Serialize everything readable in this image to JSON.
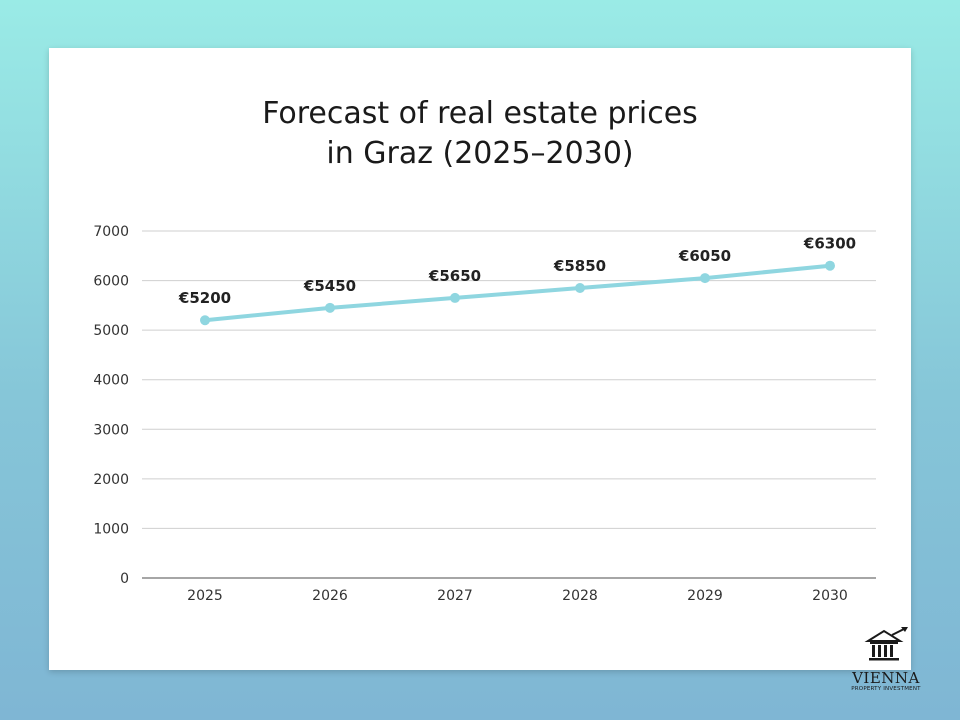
{
  "chart_data": {
    "type": "line",
    "title_lines": [
      "Forecast of real estate prices",
      "in Graz (2025–2030)"
    ],
    "categories": [
      "2025",
      "2026",
      "2027",
      "2028",
      "2029",
      "2030"
    ],
    "values": [
      5200,
      5450,
      5650,
      5850,
      6050,
      6300
    ],
    "data_labels": [
      "€5200",
      "€5450",
      "€5650",
      "€5850",
      "€6050",
      "€6300"
    ],
    "y_ticks": [
      0,
      1000,
      2000,
      3000,
      4000,
      5000,
      6000,
      7000
    ],
    "ylim": [
      0,
      7000
    ],
    "grid": true,
    "line_color": "#8fd6e0",
    "grid_color": "#cfcfcf"
  },
  "logo": {
    "name": "VIENNA",
    "subtitle": "PROPERTY INVESTMENT"
  }
}
